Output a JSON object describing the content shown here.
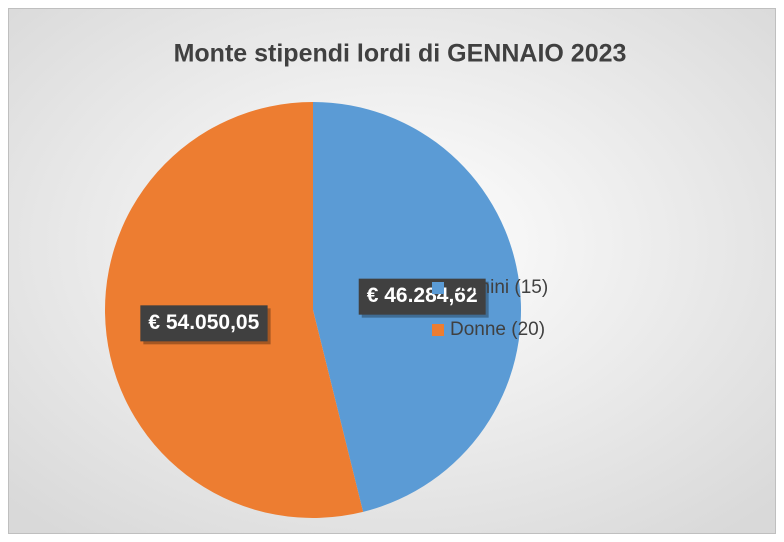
{
  "chart_data": {
    "type": "pie",
    "title": "Monte stipendi lordi di GENNAIO 2023",
    "categories": [
      "Uomini (15)",
      "Donne (20)"
    ],
    "values": [
      46284.62,
      54050.05
    ],
    "value_labels": [
      "€ 46.284,62",
      "€ 54.050,05"
    ],
    "colors": [
      "#5b9bd5",
      "#ed7d31"
    ],
    "legend": "right"
  }
}
